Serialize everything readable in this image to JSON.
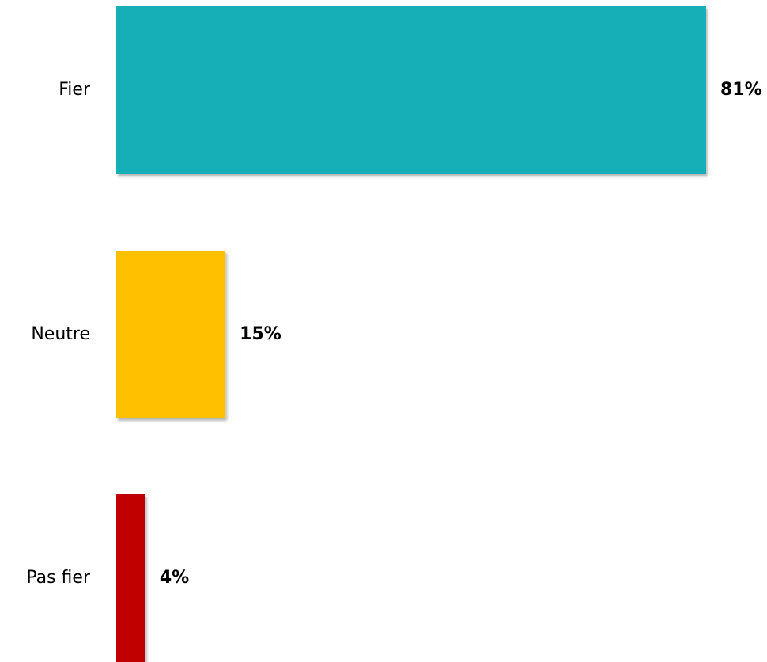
{
  "chart_data": {
    "type": "bar",
    "orientation": "horizontal",
    "categories": [
      "Fier",
      "Neutre",
      "Pas fier"
    ],
    "values": [
      81,
      15,
      4
    ],
    "value_labels": [
      "81%",
      "15%",
      "4%"
    ],
    "colors": [
      "#14AFB7",
      "#FFC000",
      "#C00000"
    ],
    "title": "",
    "xlabel": "",
    "ylabel": "",
    "xlim": [
      0,
      81
    ],
    "grid": false,
    "legend": "none"
  }
}
